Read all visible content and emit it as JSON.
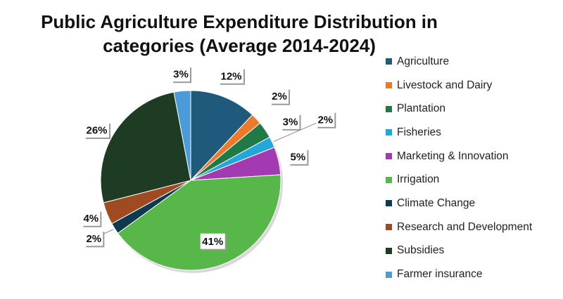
{
  "chart_data": {
    "type": "pie",
    "title_lines": [
      "Public Agriculture Expenditure Distribution in",
      "categories (Average 2014-2024)"
    ],
    "legend_position": "right",
    "categories": [
      "Agriculture",
      "Livestock and Dairy",
      "Plantation",
      "Fisheries",
      "Marketing & Innovation",
      "Irrigation",
      "Climate Change",
      "Research and Development",
      "Subsidies",
      "Farmer insurance"
    ],
    "values": [
      12,
      2,
      3,
      2,
      5,
      41,
      2,
      4,
      26,
      3
    ],
    "labels": [
      "12%",
      "2%",
      "3%",
      "2%",
      "5%",
      "41%",
      "2%",
      "4%",
      "26%",
      "3%"
    ],
    "colors": [
      "#1f5a7c",
      "#ec7a2a",
      "#1f7a45",
      "#23a7da",
      "#a43ab2",
      "#57b748",
      "#0d3a4e",
      "#a04a22",
      "#1e3b24",
      "#4b9bd8"
    ]
  }
}
